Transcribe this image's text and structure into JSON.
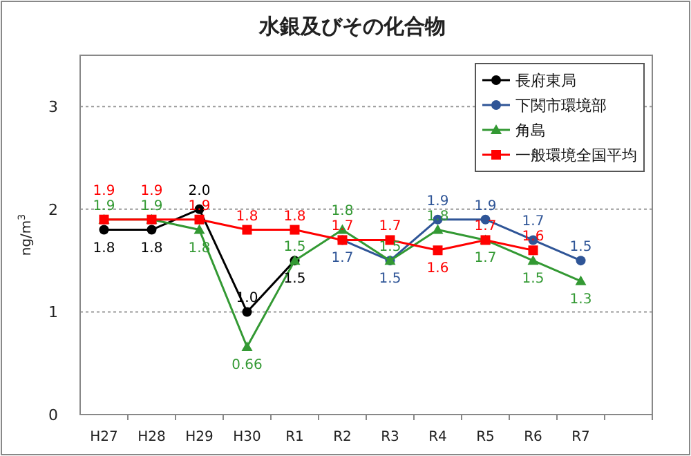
{
  "chart_data": {
    "type": "line",
    "title": "水銀及びその化合物",
    "ylabel": "ng/m$^{3}$",
    "categories": [
      "H27",
      "H28",
      "H29",
      "H30",
      "R1",
      "R2",
      "R3",
      "R4",
      "R5",
      "R6",
      "R7",
      null
    ],
    "series": [
      {
        "name": "長府東局",
        "color": "#000000",
        "marker": "circle",
        "values": [
          1.8,
          1.8,
          2.0,
          1.0,
          1.5,
          null,
          null,
          null,
          null,
          null,
          null,
          null
        ],
        "value_labels": [
          "1.8",
          "1.8",
          "2.0",
          "1.0",
          "1.5",
          null,
          null,
          null,
          null,
          null,
          null,
          null
        ]
      },
      {
        "name": "下関市環境部",
        "color": "#2f5597",
        "marker": "circle",
        "values": [
          null,
          null,
          null,
          null,
          null,
          1.7,
          1.5,
          1.9,
          1.9,
          1.7,
          1.5,
          null
        ]
      },
      {
        "name": "角島",
        "color": "#339933",
        "marker": "triangle",
        "values": [
          1.9,
          1.9,
          1.8,
          0.66,
          1.5,
          1.8,
          1.5,
          1.8,
          1.7,
          1.5,
          1.3,
          null
        ]
      },
      {
        "name": "一般環境全国平均",
        "color": "#ff0000",
        "marker": "square",
        "values": [
          1.9,
          1.9,
          1.9,
          1.8,
          1.8,
          1.7,
          1.7,
          1.6,
          1.7,
          1.6,
          null,
          null
        ]
      }
    ],
    "ylim": [
      0,
      3.5
    ],
    "yticks": [
      0,
      1,
      2,
      3
    ],
    "grid": "y",
    "legend": "top right",
    "data_labels": true
  }
}
